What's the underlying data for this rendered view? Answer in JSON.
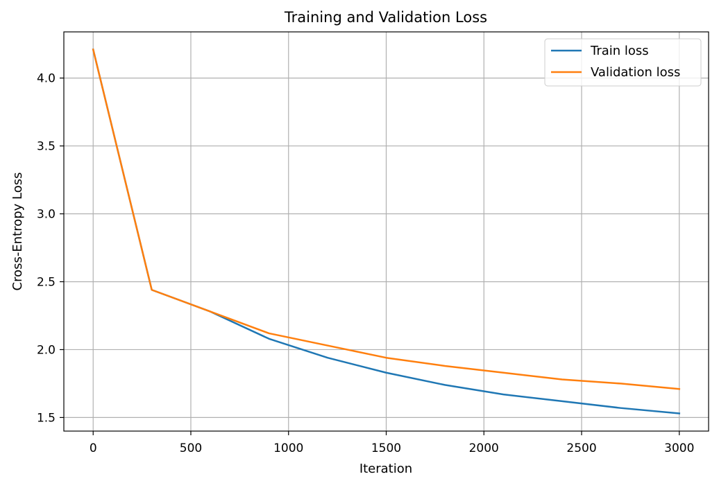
{
  "chart_data": {
    "type": "line",
    "title": "Training and Validation Loss",
    "xlabel": "Iteration",
    "ylabel": "Cross-Entropy Loss",
    "xlim": [
      -150,
      3150
    ],
    "ylim": [
      1.4,
      4.34
    ],
    "x_ticks": [
      0,
      500,
      1000,
      1500,
      2000,
      2500,
      3000
    ],
    "x_tick_labels": [
      "0",
      "500",
      "1000",
      "1500",
      "2000",
      "2500",
      "3000"
    ],
    "y_ticks": [
      1.5,
      2.0,
      2.5,
      3.0,
      3.5,
      4.0
    ],
    "y_tick_labels": [
      "1.5",
      "2.0",
      "2.5",
      "3.0",
      "3.5",
      "4.0"
    ],
    "grid": true,
    "legend_position": "top-right",
    "x": [
      0,
      300,
      600,
      900,
      1200,
      1500,
      1800,
      2100,
      2400,
      2700,
      3000
    ],
    "series": [
      {
        "name": "Train loss",
        "color": "#1f77b4",
        "values": [
          4.21,
          2.44,
          2.28,
          2.08,
          1.94,
          1.83,
          1.74,
          1.67,
          1.62,
          1.57,
          1.53
        ]
      },
      {
        "name": "Validation loss",
        "color": "#ff7f0e",
        "values": [
          4.21,
          2.44,
          2.28,
          2.12,
          2.03,
          1.94,
          1.88,
          1.83,
          1.78,
          1.75,
          1.71
        ]
      }
    ]
  }
}
